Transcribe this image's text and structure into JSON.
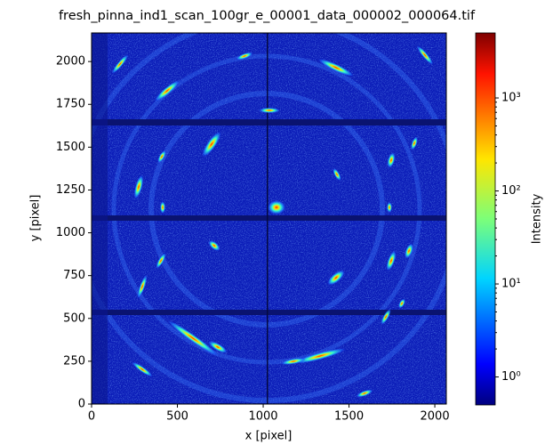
{
  "chart_data": {
    "type": "image",
    "title": "fresh_pinna_ind1_scan_100gr_e_00001_data_000002_000064.tif",
    "xlabel": "x [pixel]",
    "ylabel": "y [pixel]",
    "xlim": [
      0,
      2067
    ],
    "ylim": [
      0,
      2167
    ],
    "xticks": [
      0,
      500,
      1000,
      1500,
      2000
    ],
    "yticks": [
      0,
      250,
      500,
      750,
      1000,
      1250,
      1500,
      1750,
      2000
    ],
    "colorbar": {
      "label": "Intensity",
      "log_scale": true,
      "colormap": "jet",
      "lim": [
        0.5,
        5000
      ],
      "ticks": [
        {
          "value": 1,
          "label": "10⁰"
        },
        {
          "value": 10,
          "label": "10¹"
        },
        {
          "value": 100,
          "label": "10²"
        },
        {
          "value": 1000,
          "label": "10³"
        }
      ]
    }
  }
}
